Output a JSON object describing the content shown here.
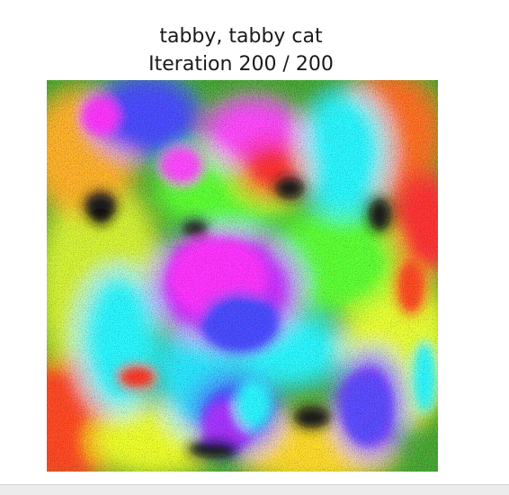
{
  "figure": {
    "title_line1": "tabby, tabby cat",
    "title_line2": "Iteration 200 / 200"
  },
  "image": {
    "description_name": "class-visualization-image"
  },
  "colors": {
    "background": "#ffffff",
    "green": "#4cff2a",
    "yellow": "#f4ff1e",
    "red": "#ff2a1a",
    "cyan": "#22f5ff",
    "blue": "#3a3cff",
    "magenta": "#ff2aff",
    "dark": "#1a1a1a"
  }
}
